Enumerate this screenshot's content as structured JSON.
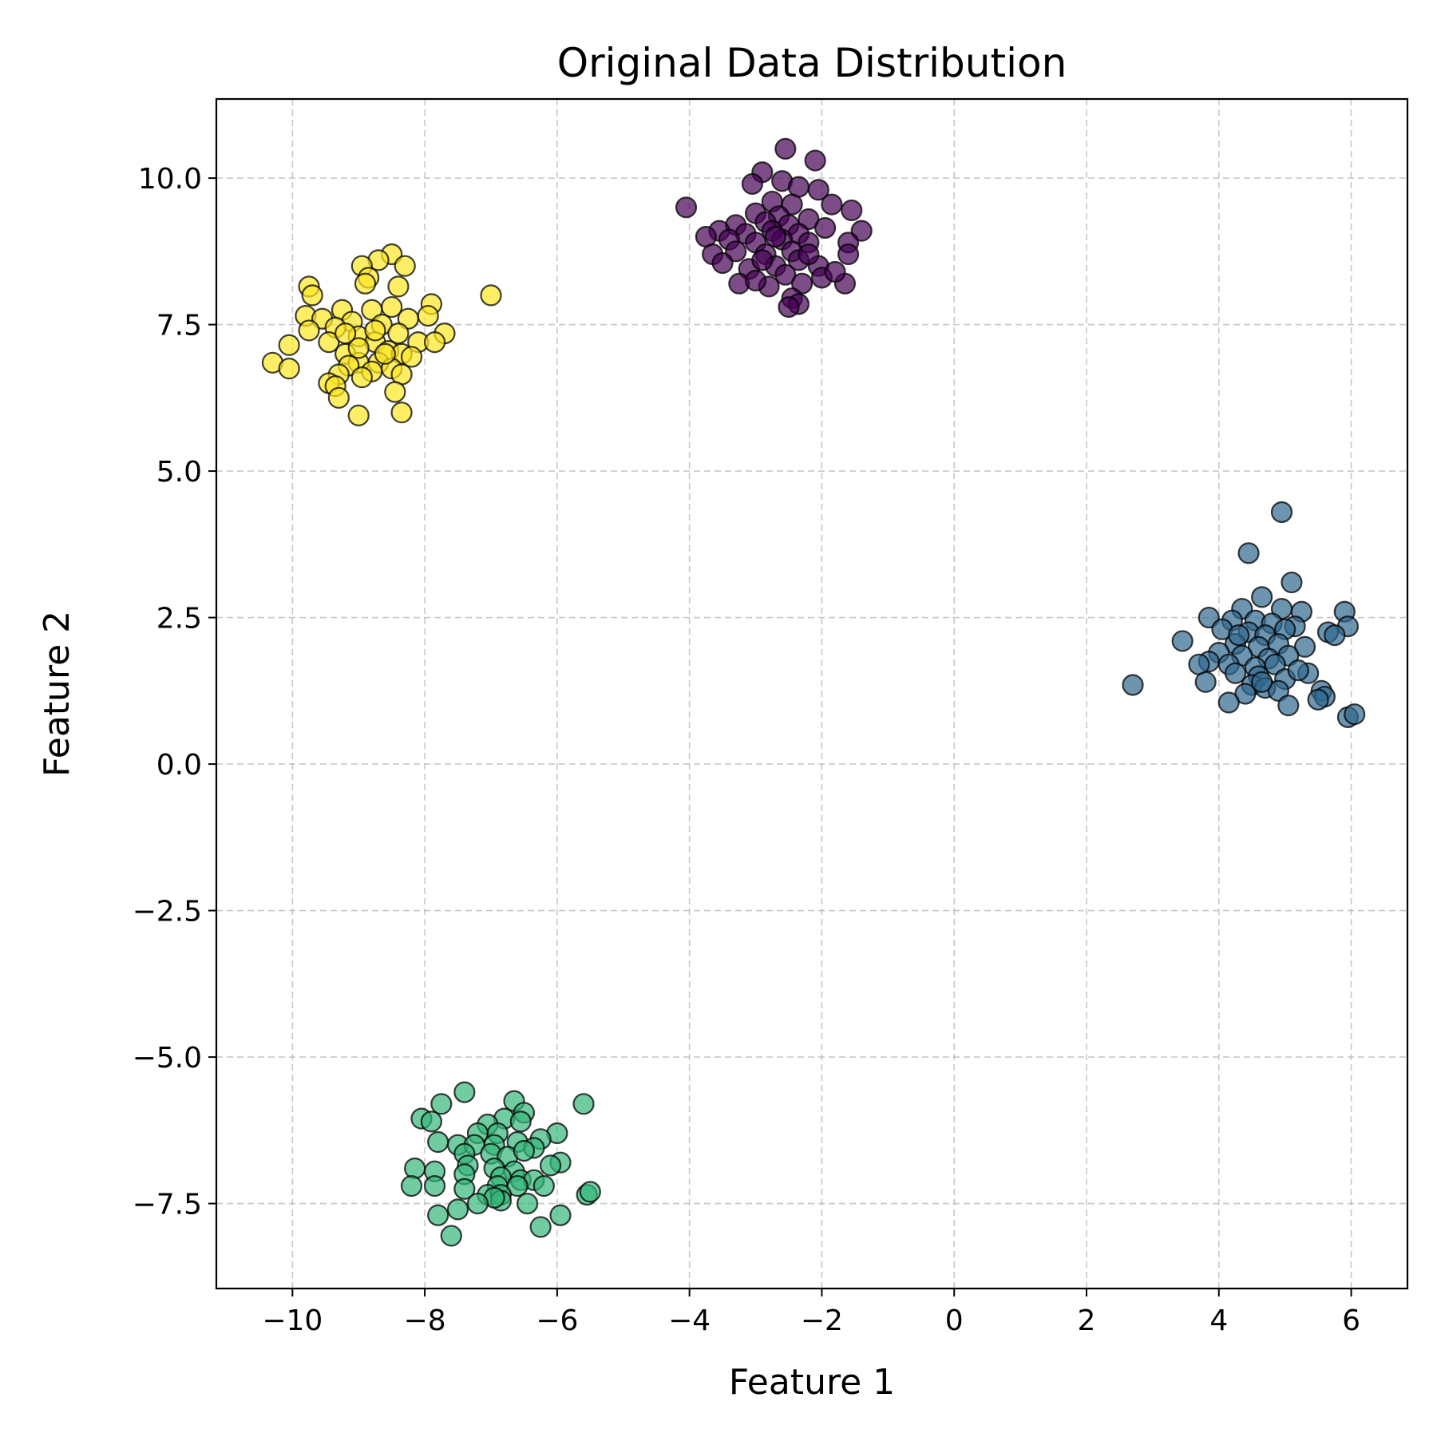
{
  "chart_data": {
    "type": "scatter",
    "title": "Original Data Distribution",
    "xlabel": "Feature 1",
    "ylabel": "Feature 2",
    "xlim": [
      -11.15,
      6.85
    ],
    "ylim": [
      -8.95,
      11.35
    ],
    "xticks": [
      -10,
      -8,
      -6,
      -4,
      -2,
      0,
      2,
      4,
      6
    ],
    "xtick_labels": [
      "−10",
      "−8",
      "−6",
      "−4",
      "−2",
      "0",
      "2",
      "4",
      "6"
    ],
    "yticks": [
      -7.5,
      -5.0,
      -2.5,
      0.0,
      2.5,
      5.0,
      7.5,
      10.0
    ],
    "ytick_labels": [
      "−7.5",
      "−5.0",
      "−2.5",
      "0.0",
      "2.5",
      "5.0",
      "7.5",
      "10.0"
    ],
    "grid": true,
    "marker_edge_color": "#000000",
    "series": [
      {
        "color": "#440154",
        "points": [
          [
            -2.55,
            10.5
          ],
          [
            -2.1,
            10.3
          ],
          [
            -2.9,
            10.1
          ],
          [
            -3.05,
            9.9
          ],
          [
            -2.6,
            9.95
          ],
          [
            -2.35,
            9.85
          ],
          [
            -2.05,
            9.8
          ],
          [
            -4.05,
            9.5
          ],
          [
            -2.75,
            9.6
          ],
          [
            -2.45,
            9.55
          ],
          [
            -1.85,
            9.55
          ],
          [
            -1.55,
            9.45
          ],
          [
            -3.0,
            9.4
          ],
          [
            -2.65,
            9.35
          ],
          [
            -2.2,
            9.3
          ],
          [
            -3.3,
            9.2
          ],
          [
            -2.85,
            9.25
          ],
          [
            -2.5,
            9.2
          ],
          [
            -3.55,
            9.1
          ],
          [
            -1.4,
            9.1
          ],
          [
            -3.15,
            9.05
          ],
          [
            -2.75,
            9.1
          ],
          [
            -2.35,
            9.05
          ],
          [
            -1.95,
            9.15
          ],
          [
            -3.75,
            9.0
          ],
          [
            -3.4,
            8.95
          ],
          [
            -3.0,
            8.9
          ],
          [
            -2.6,
            8.95
          ],
          [
            -2.2,
            8.9
          ],
          [
            -1.6,
            8.9
          ],
          [
            -3.3,
            8.75
          ],
          [
            -2.85,
            8.7
          ],
          [
            -2.45,
            8.75
          ],
          [
            -1.6,
            8.7
          ],
          [
            -3.65,
            8.7
          ],
          [
            -3.5,
            8.55
          ],
          [
            -2.7,
            8.5
          ],
          [
            -2.35,
            8.6
          ],
          [
            -2.05,
            8.5
          ],
          [
            -3.1,
            8.45
          ],
          [
            -2.55,
            8.35
          ],
          [
            -2.0,
            8.3
          ],
          [
            -3.25,
            8.2
          ],
          [
            -2.8,
            8.15
          ],
          [
            -2.3,
            8.2
          ],
          [
            -1.65,
            8.2
          ],
          [
            -2.45,
            7.95
          ],
          [
            -2.35,
            7.85
          ],
          [
            -2.5,
            7.8
          ],
          [
            -3.0,
            8.25
          ],
          [
            -2.7,
            9.0
          ],
          [
            -2.9,
            8.6
          ],
          [
            -2.2,
            8.7
          ],
          [
            -1.8,
            8.4
          ]
        ]
      },
      {
        "color": "#31688e",
        "points": [
          [
            4.95,
            4.3
          ],
          [
            4.45,
            3.6
          ],
          [
            5.1,
            3.1
          ],
          [
            4.65,
            2.85
          ],
          [
            4.35,
            2.65
          ],
          [
            4.95,
            2.65
          ],
          [
            5.25,
            2.6
          ],
          [
            5.9,
            2.6
          ],
          [
            3.85,
            2.5
          ],
          [
            4.2,
            2.45
          ],
          [
            4.55,
            2.45
          ],
          [
            4.8,
            2.4
          ],
          [
            5.15,
            2.35
          ],
          [
            5.95,
            2.35
          ],
          [
            4.05,
            2.3
          ],
          [
            4.45,
            2.25
          ],
          [
            4.7,
            2.2
          ],
          [
            5.0,
            2.3
          ],
          [
            5.65,
            2.25
          ],
          [
            5.75,
            2.2
          ],
          [
            3.45,
            2.1
          ],
          [
            4.25,
            2.05
          ],
          [
            4.6,
            2.0
          ],
          [
            4.9,
            2.05
          ],
          [
            5.3,
            2.0
          ],
          [
            4.0,
            1.9
          ],
          [
            4.35,
            1.85
          ],
          [
            4.75,
            1.8
          ],
          [
            5.05,
            1.85
          ],
          [
            3.85,
            1.75
          ],
          [
            4.15,
            1.7
          ],
          [
            4.55,
            1.65
          ],
          [
            4.85,
            1.7
          ],
          [
            3.7,
            1.7
          ],
          [
            4.25,
            1.55
          ],
          [
            4.6,
            1.5
          ],
          [
            5.0,
            1.45
          ],
          [
            5.35,
            1.55
          ],
          [
            3.8,
            1.4
          ],
          [
            4.5,
            1.35
          ],
          [
            4.7,
            1.3
          ],
          [
            4.9,
            1.25
          ],
          [
            5.55,
            1.25
          ],
          [
            2.7,
            1.35
          ],
          [
            4.4,
            1.2
          ],
          [
            5.6,
            1.15
          ],
          [
            4.15,
            1.05
          ],
          [
            5.05,
            1.0
          ],
          [
            5.5,
            1.1
          ],
          [
            5.95,
            0.8
          ],
          [
            6.05,
            0.85
          ],
          [
            4.65,
            1.4
          ],
          [
            4.3,
            2.2
          ],
          [
            5.2,
            1.6
          ]
        ]
      },
      {
        "color": "#35b779",
        "points": [
          [
            -7.4,
            -5.6
          ],
          [
            -6.65,
            -5.75
          ],
          [
            -7.75,
            -5.8
          ],
          [
            -5.6,
            -5.8
          ],
          [
            -6.5,
            -5.95
          ],
          [
            -6.8,
            -6.05
          ],
          [
            -8.05,
            -6.05
          ],
          [
            -7.9,
            -6.1
          ],
          [
            -7.05,
            -6.15
          ],
          [
            -6.55,
            -6.1
          ],
          [
            -7.2,
            -6.3
          ],
          [
            -6.9,
            -6.3
          ],
          [
            -6.0,
            -6.3
          ],
          [
            -6.25,
            -6.4
          ],
          [
            -7.8,
            -6.45
          ],
          [
            -7.5,
            -6.5
          ],
          [
            -7.25,
            -6.5
          ],
          [
            -6.95,
            -6.5
          ],
          [
            -6.6,
            -6.45
          ],
          [
            -6.35,
            -6.55
          ],
          [
            -7.4,
            -6.65
          ],
          [
            -7.0,
            -6.65
          ],
          [
            -6.75,
            -6.7
          ],
          [
            -6.5,
            -6.6
          ],
          [
            -5.95,
            -6.8
          ],
          [
            -6.1,
            -6.85
          ],
          [
            -7.35,
            -6.85
          ],
          [
            -6.95,
            -6.9
          ],
          [
            -6.65,
            -6.95
          ],
          [
            -8.15,
            -6.9
          ],
          [
            -7.85,
            -6.95
          ],
          [
            -7.4,
            -7.0
          ],
          [
            -6.85,
            -7.05
          ],
          [
            -6.55,
            -7.1
          ],
          [
            -6.35,
            -7.1
          ],
          [
            -8.2,
            -7.2
          ],
          [
            -7.85,
            -7.2
          ],
          [
            -7.4,
            -7.25
          ],
          [
            -6.9,
            -7.2
          ],
          [
            -6.6,
            -7.2
          ],
          [
            -6.2,
            -7.2
          ],
          [
            -7.05,
            -7.35
          ],
          [
            -6.85,
            -7.35
          ],
          [
            -5.55,
            -7.35
          ],
          [
            -5.5,
            -7.3
          ],
          [
            -6.85,
            -7.45
          ],
          [
            -6.95,
            -7.4
          ],
          [
            -7.2,
            -7.5
          ],
          [
            -7.5,
            -7.6
          ],
          [
            -6.45,
            -7.5
          ],
          [
            -7.8,
            -7.7
          ],
          [
            -5.95,
            -7.7
          ],
          [
            -6.25,
            -7.9
          ],
          [
            -7.6,
            -8.05
          ]
        ]
      },
      {
        "color": "#fde725",
        "points": [
          [
            -8.5,
            8.7
          ],
          [
            -8.7,
            8.6
          ],
          [
            -8.95,
            8.5
          ],
          [
            -8.3,
            8.5
          ],
          [
            -8.85,
            8.3
          ],
          [
            -8.4,
            8.15
          ],
          [
            -9.75,
            8.15
          ],
          [
            -9.7,
            8.0
          ],
          [
            -7.0,
            8.0
          ],
          [
            -8.9,
            8.2
          ],
          [
            -7.9,
            7.85
          ],
          [
            -8.5,
            7.8
          ],
          [
            -9.25,
            7.75
          ],
          [
            -8.8,
            7.75
          ],
          [
            -9.8,
            7.65
          ],
          [
            -9.55,
            7.6
          ],
          [
            -8.25,
            7.6
          ],
          [
            -7.95,
            7.65
          ],
          [
            -9.1,
            7.55
          ],
          [
            -9.35,
            7.45
          ],
          [
            -8.65,
            7.5
          ],
          [
            -9.75,
            7.4
          ],
          [
            -7.7,
            7.35
          ],
          [
            -8.4,
            7.35
          ],
          [
            -9.0,
            7.3
          ],
          [
            -9.45,
            7.2
          ],
          [
            -8.75,
            7.2
          ],
          [
            -8.1,
            7.2
          ],
          [
            -7.85,
            7.2
          ],
          [
            -10.05,
            7.15
          ],
          [
            -8.55,
            7.05
          ],
          [
            -9.2,
            7.0
          ],
          [
            -8.35,
            7.0
          ],
          [
            -8.2,
            6.95
          ],
          [
            -10.3,
            6.85
          ],
          [
            -9.0,
            6.85
          ],
          [
            -8.7,
            6.85
          ],
          [
            -9.15,
            6.8
          ],
          [
            -8.5,
            6.75
          ],
          [
            -10.05,
            6.75
          ],
          [
            -8.8,
            6.7
          ],
          [
            -9.3,
            6.65
          ],
          [
            -8.35,
            6.65
          ],
          [
            -8.95,
            6.6
          ],
          [
            -9.45,
            6.5
          ],
          [
            -9.35,
            6.45
          ],
          [
            -8.45,
            6.35
          ],
          [
            -9.3,
            6.25
          ],
          [
            -8.35,
            6.0
          ],
          [
            -9.0,
            5.95
          ],
          [
            -8.6,
            7.0
          ],
          [
            -9.0,
            7.1
          ],
          [
            -8.75,
            7.4
          ],
          [
            -9.2,
            7.35
          ]
        ]
      }
    ]
  }
}
